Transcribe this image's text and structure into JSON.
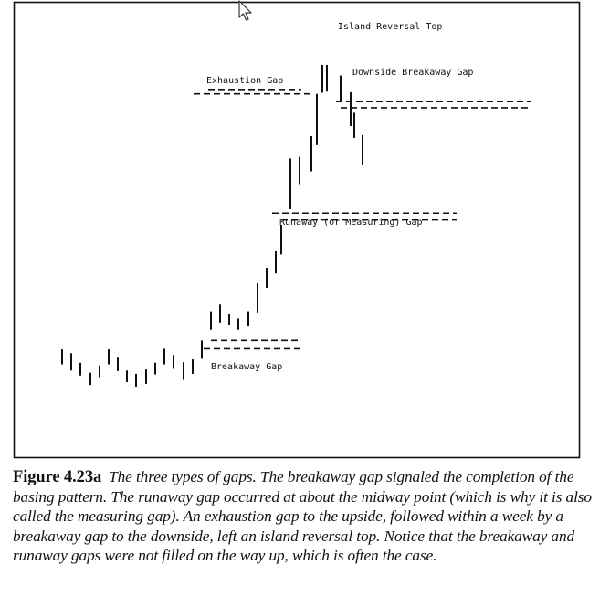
{
  "chart_data": {
    "type": "bar",
    "subtype": "ohlc-range-bars",
    "title": "",
    "xlabel": "",
    "ylabel": "",
    "bars": [
      {
        "low": 14.5,
        "high": 17.2
      },
      {
        "low": 13.4,
        "high": 16.5
      },
      {
        "low": 12.5,
        "high": 14.8
      },
      {
        "low": 10.8,
        "high": 13.0
      },
      {
        "low": 12.2,
        "high": 14.3
      },
      {
        "low": 14.5,
        "high": 17.2
      },
      {
        "low": 13.3,
        "high": 15.7
      },
      {
        "low": 11.3,
        "high": 13.4
      },
      {
        "low": 10.5,
        "high": 12.8
      },
      {
        "low": 11.0,
        "high": 13.6
      },
      {
        "low": 12.7,
        "high": 14.8
      },
      {
        "low": 14.5,
        "high": 17.3
      },
      {
        "low": 13.7,
        "high": 16.2
      },
      {
        "low": 11.7,
        "high": 14.9
      },
      {
        "low": 12.8,
        "high": 15.4
      },
      {
        "low": 15.5,
        "high": 18.8
      },
      {
        "low": 20.7,
        "high": 24.0
      },
      {
        "low": 22.0,
        "high": 25.2
      },
      {
        "low": 21.5,
        "high": 23.5
      },
      {
        "low": 20.7,
        "high": 22.7
      },
      {
        "low": 21.3,
        "high": 24.0
      },
      {
        "low": 23.8,
        "high": 29.1
      },
      {
        "low": 28.2,
        "high": 31.8
      },
      {
        "low": 30.8,
        "high": 34.8
      },
      {
        "low": 34.2,
        "high": 39.5
      },
      {
        "low": 42.3,
        "high": 51.4
      },
      {
        "low": 46.8,
        "high": 51.7
      },
      {
        "low": 49.1,
        "high": 55.4
      },
      {
        "low": 53.8,
        "high": 63.0
      },
      {
        "low": 63.2,
        "high": 68.2
      },
      {
        "low": 63.4,
        "high": 68.2
      },
      {
        "low": 61.7,
        "high": 66.3
      },
      {
        "low": 57.2,
        "high": 63.3
      },
      {
        "low": 55.1,
        "high": 59.6
      },
      {
        "low": 50.3,
        "high": 55.6
      }
    ],
    "gap_lines": [
      {
        "y": 17.3
      },
      {
        "y": 18.8
      },
      {
        "y": 40.4
      },
      {
        "y": 41.6
      },
      {
        "y": 63.0
      },
      {
        "y": 63.8
      },
      {
        "y": 61.6
      },
      {
        "y": 60.5
      }
    ],
    "annotations": [
      {
        "text": "Island Reversal Top"
      },
      {
        "text": "Downside Breakaway Gap"
      },
      {
        "text": "Exhaustion Gap"
      },
      {
        "text": "Runaway (or Measuring) Gap"
      },
      {
        "text": "Breakaway Gap"
      }
    ],
    "ylim": [
      0,
      75
    ],
    "grid": false,
    "legend": "none"
  },
  "caption": {
    "label": "Figure 4.23a",
    "text": "The three types of gaps. The breakaway gap signaled the completion of the basing pattern. The runaway gap occurred at about the midway point (which is why it is also called the measuring gap). An exhaustion gap to the upside, followed within a week by a breakaway gap to the downside, left an island reversal top. Notice that the breakaway and runaway gaps were not filled on the way up, which is often the case."
  },
  "colors": {
    "ink": "#111111",
    "frame": "#111111",
    "background": "#ffffff"
  },
  "icons": {
    "cursor": "mouse-pointer-icon"
  }
}
